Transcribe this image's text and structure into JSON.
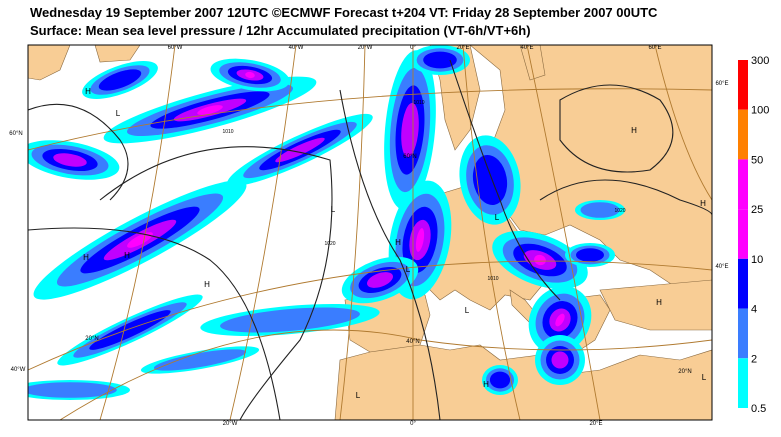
{
  "header": {
    "line1": "Wednesday 19 September 2007 12UTC ©ECMWF Forecast t+204 VT: Friday 28 September 2007 00UTC",
    "line2": "Surface: Mean sea level pressure / 12hr Accumulated precipitation (VT-6h/VT+6h)"
  },
  "colorbar": {
    "labels": [
      "300",
      "100",
      "50",
      "25",
      "10",
      "4",
      "2",
      "0.5"
    ]
  },
  "map": {
    "grid_labels": [
      "60°W",
      "40°W",
      "20°W",
      "0°",
      "20°E",
      "40°E",
      "60°E",
      "60°N",
      "40°W",
      "60°E",
      "40°E",
      "20°W",
      "0°",
      "20°E",
      "60°N",
      "40°N",
      "20°N",
      "20°N"
    ],
    "pressure_labels": [
      "H",
      "L",
      "H",
      "H",
      "H",
      "L",
      "H",
      "L",
      "H",
      "L",
      "H",
      "L",
      "H",
      "H",
      "L",
      "L"
    ],
    "isobar_labels": [
      "1010",
      "1020",
      "1010",
      "1010",
      "1020"
    ]
  }
}
